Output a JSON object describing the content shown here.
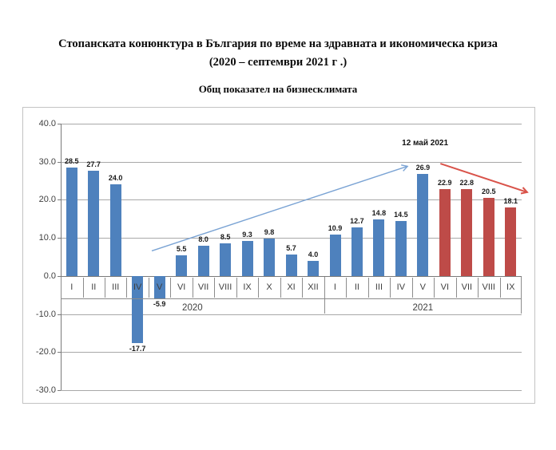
{
  "header": {
    "title_line1": "Стопанската конюнктура в България по време на здравната и икономическа криза",
    "title_line2": "(2020 – септември 2021 г .)",
    "subtitle": "Общ показател на бизнесклимата"
  },
  "chart_data": {
    "type": "bar",
    "title": "Стопанската конюнктура в България по време на здравната и икономическа криза (2020 – септември 2021 г .)",
    "subtitle": "Общ показател на бизнесклимата",
    "xlabel": "",
    "ylabel": "",
    "ylim": [
      -30,
      40
    ],
    "ytick_step": 10,
    "grid": true,
    "legend": "none",
    "value_labels": true,
    "groups": [
      {
        "label": "2020",
        "categories": [
          "I",
          "II",
          "III",
          "IV",
          "V",
          "VI",
          "VII",
          "VIII",
          "IX",
          "X",
          "XI",
          "XII"
        ],
        "values": [
          28.5,
          27.7,
          24.0,
          -17.7,
          -5.9,
          5.5,
          8.0,
          8.5,
          9.3,
          9.8,
          5.7,
          4.0
        ]
      },
      {
        "label": "2021",
        "categories": [
          "I",
          "II",
          "III",
          "IV",
          "V",
          "VI",
          "VII",
          "VIII",
          "IX"
        ],
        "values": [
          10.9,
          12.7,
          14.8,
          14.5,
          26.9,
          22.9,
          22.8,
          20.5,
          18.1
        ]
      }
    ],
    "highlight": {
      "group": "2021",
      "categories": [
        "VI",
        "VII",
        "VIII",
        "IX"
      ]
    },
    "colors": {
      "bar_default": "#4E81BD",
      "bar_highlight": "#BE4B48",
      "gridline": "#A8A8A8",
      "axis": "#7A7A7A",
      "uptrend_arrow": "#7AA3D4",
      "downtrend_arrow": "#D9534A"
    },
    "annotation": {
      "text": "12 май 2021",
      "slot": 16.6,
      "value": 34.4
    },
    "arrows": [
      {
        "name": "uptrend-arrow",
        "color_key": "uptrend_arrow",
        "from": {
          "slot": 4.15,
          "value": 6.6
        },
        "to": {
          "slot": 15.8,
          "value": 28.8
        },
        "stroke_width": 1.4
      },
      {
        "name": "downtrend-arrow",
        "color_key": "downtrend_arrow",
        "from": {
          "slot": 17.3,
          "value": 29.5
        },
        "to": {
          "slot": 21.25,
          "value": 22.0
        },
        "stroke_width": 2
      }
    ]
  }
}
